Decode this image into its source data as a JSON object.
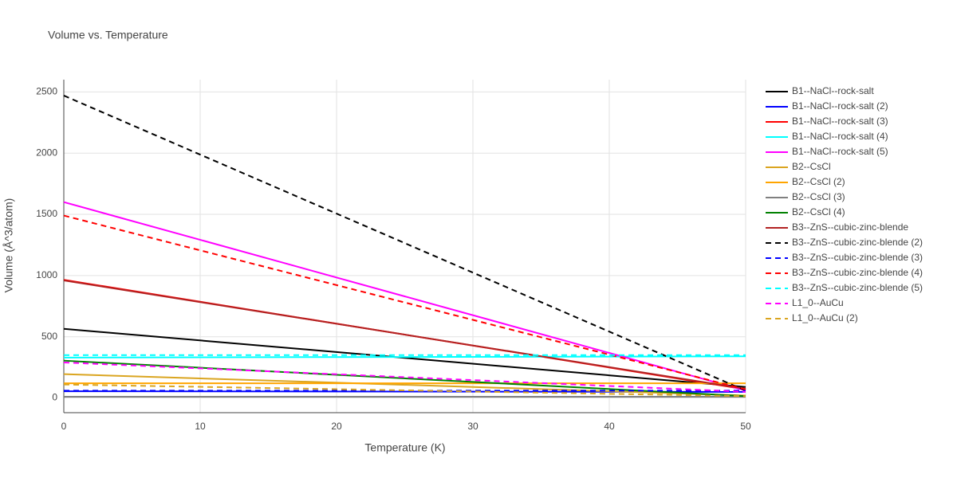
{
  "chart_data": {
    "type": "line",
    "title": "Volume vs. Temperature",
    "x_label": "Temperature (K)",
    "y_label": "Volume (Å^3/atom)",
    "x": [
      0,
      50
    ],
    "xlim": [
      0,
      50
    ],
    "xticks": [
      0,
      10,
      20,
      30,
      40,
      50
    ],
    "ylim": [
      -120,
      2600
    ],
    "yticks": [
      0,
      500,
      1000,
      1500,
      2000,
      2500
    ],
    "grid": true,
    "legend": "right",
    "series": [
      {
        "name": "B1--NaCl--rock-salt",
        "color": "#000000",
        "dash": false,
        "values": [
          565,
          90
        ]
      },
      {
        "name": "B1--NaCl--rock-salt (2)",
        "color": "#0000ff",
        "dash": false,
        "values": [
          55,
          50
        ]
      },
      {
        "name": "B1--NaCl--rock-salt (3)",
        "color": "#ff0000",
        "dash": false,
        "values": [
          965,
          70
        ]
      },
      {
        "name": "B1--NaCl--rock-salt (4)",
        "color": "#00ffff",
        "dash": false,
        "values": [
          330,
          340
        ]
      },
      {
        "name": "B1--NaCl--rock-salt (5)",
        "color": "#ff00ff",
        "dash": false,
        "values": [
          1600,
          60
        ]
      },
      {
        "name": "B2--CsCl",
        "color": "#daa520",
        "dash": false,
        "values": [
          195,
          20
        ]
      },
      {
        "name": "B2--CsCl (2)",
        "color": "#ffa500",
        "dash": false,
        "values": [
          120,
          120
        ]
      },
      {
        "name": "B2--CsCl (3)",
        "color": "#808080",
        "dash": false,
        "values": [
          10,
          10
        ]
      },
      {
        "name": "B2--CsCl (4)",
        "color": "#008000",
        "dash": false,
        "values": [
          305,
          15
        ]
      },
      {
        "name": "B3--ZnS--cubic-zinc-blende",
        "color": "#b22222",
        "dash": false,
        "values": [
          960,
          75
        ]
      },
      {
        "name": "B3--ZnS--cubic-zinc-blende (2)",
        "color": "#000000",
        "dash": true,
        "values": [
          2470,
          60
        ]
      },
      {
        "name": "B3--ZnS--cubic-zinc-blende (3)",
        "color": "#0000ff",
        "dash": true,
        "values": [
          60,
          60
        ]
      },
      {
        "name": "B3--ZnS--cubic-zinc-blende (4)",
        "color": "#ff0000",
        "dash": true,
        "values": [
          1490,
          70
        ]
      },
      {
        "name": "B3--ZnS--cubic-zinc-blende (5)",
        "color": "#00ffff",
        "dash": true,
        "values": [
          350,
          350
        ]
      },
      {
        "name": "L1_0--AuCu",
        "color": "#ff00ff",
        "dash": true,
        "values": [
          290,
          50
        ]
      },
      {
        "name": "L1_0--AuCu (2)",
        "color": "#daa520",
        "dash": true,
        "values": [
          110,
          15
        ]
      }
    ]
  }
}
